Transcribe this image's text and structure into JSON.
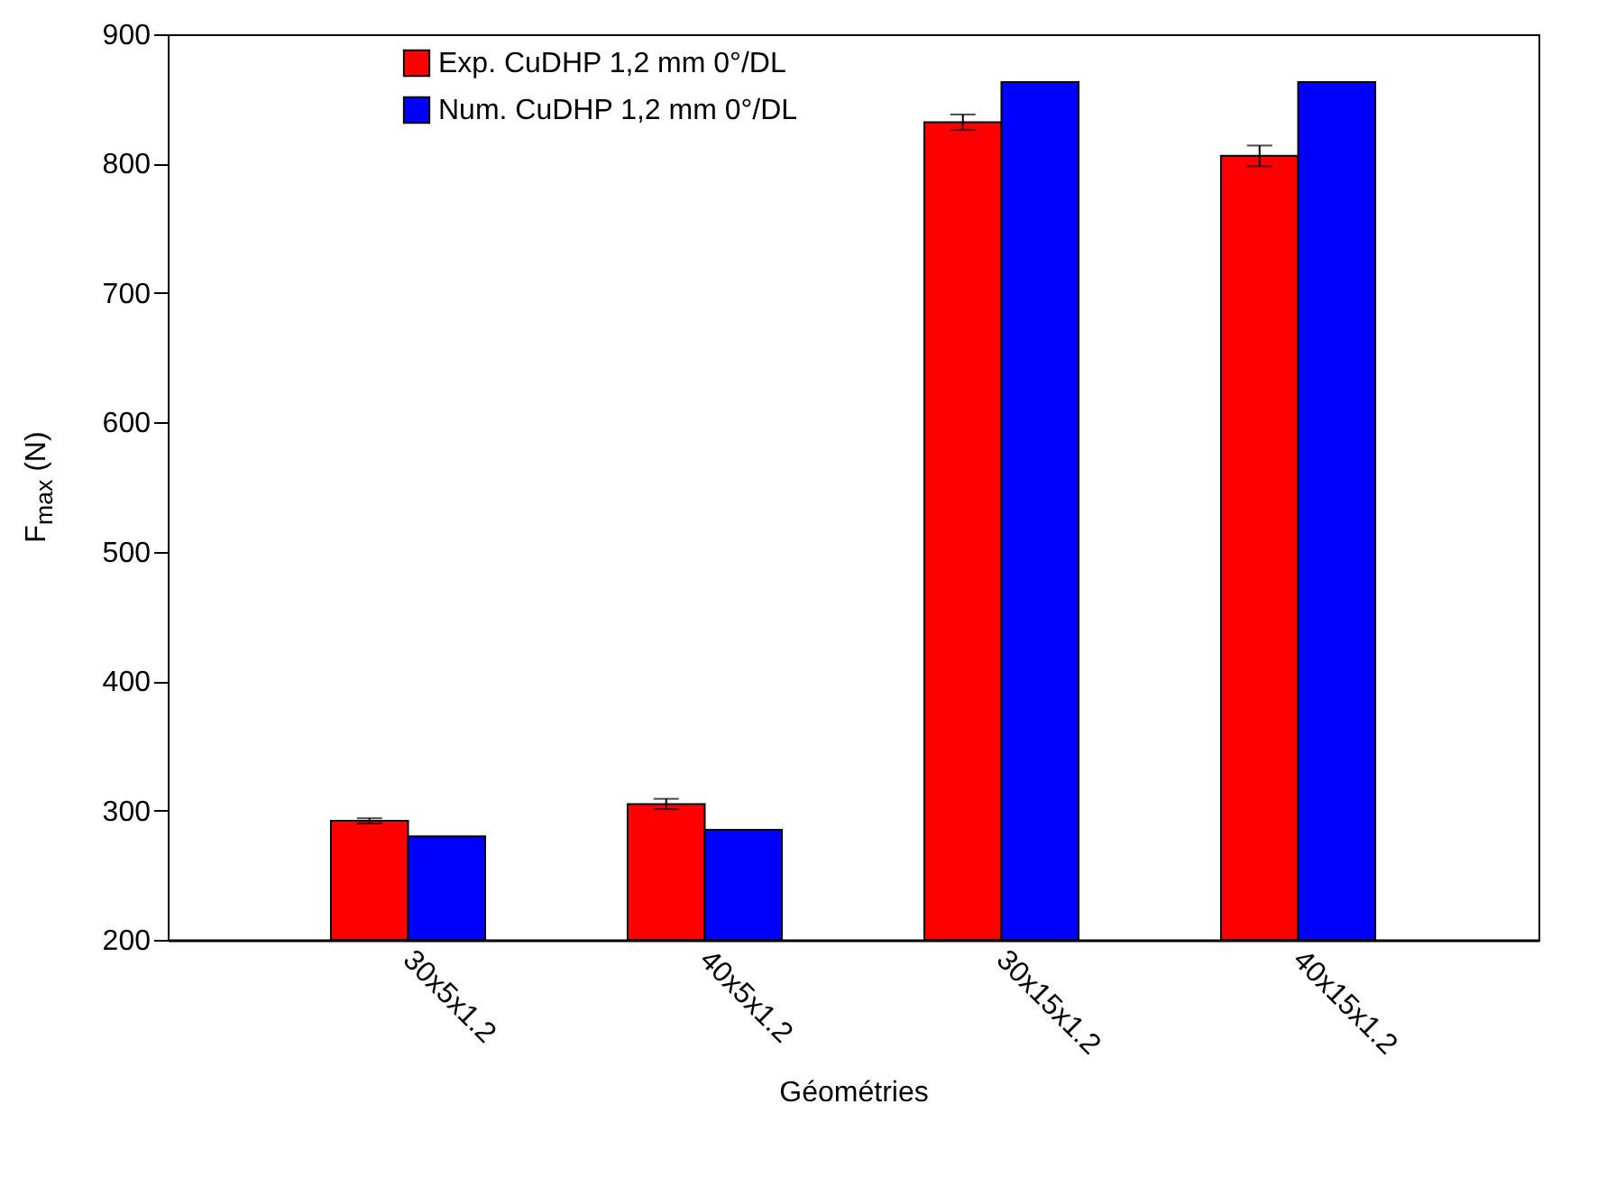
{
  "chart_data": {
    "type": "bar",
    "xlabel": "Géométries",
    "ylabel": "F$_{max}$ (N)",
    "categories": [
      "30x5x1.2",
      "40x5x1.2",
      "30x15x1.2",
      "40x15x1.2"
    ],
    "series": [
      {
        "name": "Exp. CuDHP 1,2 mm 0°/DL",
        "color": "#ff0000",
        "values": [
          292,
          305,
          832,
          806
        ],
        "errors": [
          2,
          4,
          6,
          8
        ]
      },
      {
        "name": "Num. CuDHP 1,2 mm 0°/DL",
        "color": "#0000ff",
        "values": [
          280,
          285,
          863,
          863
        ]
      }
    ],
    "ylim": [
      200,
      900
    ],
    "yticks": [
      200,
      300,
      400,
      500,
      600,
      700,
      800,
      900
    ],
    "grid": false,
    "legend": "top"
  }
}
